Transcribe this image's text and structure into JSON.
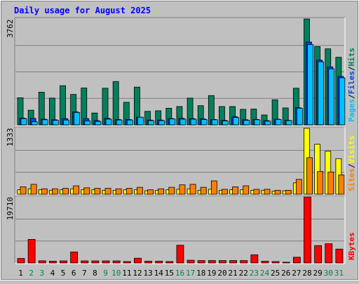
{
  "title": "Daily usage for August 2025",
  "colors": {
    "hits": "#00805c",
    "files": "#0040ff",
    "pages": "#00c0ff",
    "visits": "#ffff00",
    "sites": "#ff8000",
    "kbytes": "#ff0000",
    "title": "#0000ff",
    "weekend": "#00805c",
    "weekday": "#000000"
  },
  "chart_data": [
    {
      "type": "bar",
      "panel": "hits-files-pages",
      "title": "Daily usage for August 2025",
      "ymax_label": "3762",
      "legend": [
        {
          "text": "Pages",
          "color": "#00c0ff"
        },
        {
          "text": "Files",
          "color": "#0040ff"
        },
        {
          "text": "Hits",
          "color": "#00805c"
        }
      ],
      "categories": [
        "1",
        "2",
        "3",
        "4",
        "5",
        "6",
        "7",
        "8",
        "9",
        "10",
        "11",
        "12",
        "13",
        "14",
        "15",
        "16",
        "17",
        "18",
        "19",
        "20",
        "21",
        "22",
        "23",
        "24",
        "25",
        "26",
        "27",
        "28",
        "29",
        "30",
        "31"
      ],
      "ylim": [
        0,
        3762
      ],
      "series": [
        {
          "name": "Hits",
          "color": "#00805c",
          "values": [
            960,
            520,
            1160,
            950,
            1390,
            1080,
            1310,
            420,
            1300,
            1540,
            800,
            1340,
            480,
            500,
            590,
            650,
            950,
            680,
            1040,
            650,
            650,
            550,
            560,
            350,
            890,
            600,
            1300,
            3762,
            2780,
            2700,
            2400
          ]
        },
        {
          "name": "Files",
          "color": "#0040ff",
          "values": [
            240,
            230,
            200,
            180,
            220,
            460,
            220,
            150,
            230,
            190,
            190,
            270,
            170,
            170,
            220,
            230,
            220,
            210,
            190,
            160,
            290,
            180,
            190,
            150,
            200,
            160,
            610,
            2940,
            2300,
            2060,
            1720
          ]
        },
        {
          "name": "Pages",
          "color": "#00c0ff",
          "values": [
            220,
            110,
            180,
            160,
            170,
            440,
            140,
            120,
            200,
            170,
            170,
            270,
            150,
            150,
            210,
            200,
            200,
            190,
            180,
            140,
            260,
            160,
            180,
            130,
            190,
            150,
            590,
            2850,
            2240,
            1990,
            1670
          ]
        }
      ]
    },
    {
      "type": "bar",
      "panel": "visits-sites",
      "ymax_label": "1333",
      "legend": [
        {
          "text": "Sites",
          "color": "#ff8000"
        },
        {
          "text": "Visits",
          "color": "#ffff00"
        }
      ],
      "categories": [
        "1",
        "2",
        "3",
        "4",
        "5",
        "6",
        "7",
        "8",
        "9",
        "10",
        "11",
        "12",
        "13",
        "14",
        "15",
        "16",
        "17",
        "18",
        "19",
        "20",
        "21",
        "22",
        "23",
        "24",
        "25",
        "26",
        "27",
        "28",
        "29",
        "30",
        "31"
      ],
      "ylim": [
        0,
        1333
      ],
      "series": [
        {
          "name": "Visits",
          "color": "#ffff00",
          "values": [
            90,
            110,
            90,
            80,
            90,
            110,
            90,
            90,
            80,
            80,
            90,
            90,
            70,
            80,
            90,
            100,
            110,
            80,
            100,
            80,
            90,
            90,
            80,
            80,
            60,
            70,
            230,
            1333,
            1010,
            870,
            720
          ]
        },
        {
          "name": "Sites",
          "color": "#ff8000",
          "values": [
            150,
            200,
            110,
            110,
            120,
            170,
            130,
            120,
            120,
            110,
            120,
            140,
            90,
            110,
            140,
            190,
            200,
            140,
            270,
            100,
            150,
            170,
            100,
            100,
            80,
            80,
            300,
            740,
            460,
            450,
            390
          ]
        }
      ]
    },
    {
      "type": "bar",
      "panel": "kbytes",
      "ymax_label": "19710",
      "legend": [
        {
          "text": "KBytes",
          "color": "#ff0000"
        }
      ],
      "categories": [
        "1",
        "2",
        "3",
        "4",
        "5",
        "6",
        "7",
        "8",
        "9",
        "10",
        "11",
        "12",
        "13",
        "14",
        "15",
        "16",
        "17",
        "18",
        "19",
        "20",
        "21",
        "22",
        "23",
        "24",
        "25",
        "26",
        "27",
        "28",
        "29",
        "30",
        "31"
      ],
      "ylim": [
        0,
        19710
      ],
      "series": [
        {
          "name": "KBytes",
          "color": "#ff0000",
          "values": [
            1350,
            7050,
            650,
            520,
            620,
            3300,
            620,
            620,
            620,
            620,
            420,
            1420,
            520,
            520,
            420,
            5300,
            820,
            720,
            720,
            720,
            720,
            720,
            2450,
            520,
            420,
            220,
            1720,
            19710,
            5200,
            5750,
            4150
          ]
        }
      ]
    }
  ],
  "x_axis": {
    "labels": [
      "1",
      "2",
      "3",
      "4",
      "5",
      "6",
      "7",
      "8",
      "9",
      "10",
      "11",
      "12",
      "13",
      "14",
      "15",
      "16",
      "17",
      "18",
      "19",
      "20",
      "21",
      "22",
      "23",
      "24",
      "25",
      "26",
      "27",
      "28",
      "29",
      "30",
      "31"
    ],
    "weekend": [
      false,
      true,
      true,
      false,
      false,
      false,
      false,
      false,
      true,
      true,
      false,
      false,
      false,
      false,
      false,
      true,
      true,
      false,
      false,
      false,
      false,
      false,
      true,
      true,
      false,
      false,
      false,
      false,
      false,
      true,
      true
    ]
  }
}
